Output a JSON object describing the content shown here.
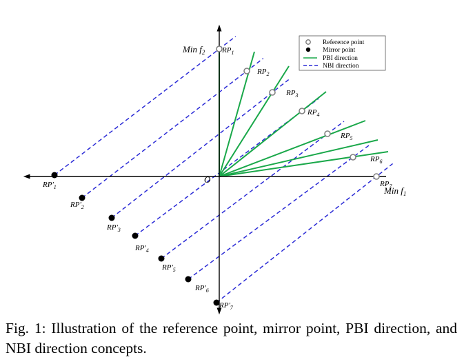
{
  "caption": "Fig. 1: Illustration of the reference point, mirror point, PBI direction, and NBI direction concepts.",
  "legend": {
    "reference_point": "Reference point",
    "mirror_point": "Mirror point",
    "pbi_direction": "PBI direction",
    "nbi_direction": "NBI direction"
  },
  "axes": {
    "origin": "O",
    "y_axis": "Min f",
    "y_sub": "2",
    "x_axis": "Min f",
    "x_sub": "1"
  },
  "reference_points": [
    {
      "base": "RP",
      "sub": "1"
    },
    {
      "base": "RP",
      "sub": "2"
    },
    {
      "base": "RP",
      "sub": "3"
    },
    {
      "base": "RP",
      "sub": "4"
    },
    {
      "base": "RP",
      "sub": "5"
    },
    {
      "base": "RP",
      "sub": "6"
    },
    {
      "base": "RP",
      "sub": "7"
    }
  ],
  "mirror_points": [
    {
      "base": "RP'",
      "sub": "1"
    },
    {
      "base": "RP'",
      "sub": "2"
    },
    {
      "base": "RP'",
      "sub": "3"
    },
    {
      "base": "RP'",
      "sub": "4"
    },
    {
      "base": "RP'",
      "sub": "5"
    },
    {
      "base": "RP'",
      "sub": "6"
    },
    {
      "base": "RP'",
      "sub": "7"
    }
  ],
  "colors": {
    "pbi": "#1aa84a",
    "nbi": "#2b2bd6",
    "axis": "#000000",
    "reference_point": "#808080",
    "mirror_point": "#000000"
  }
}
